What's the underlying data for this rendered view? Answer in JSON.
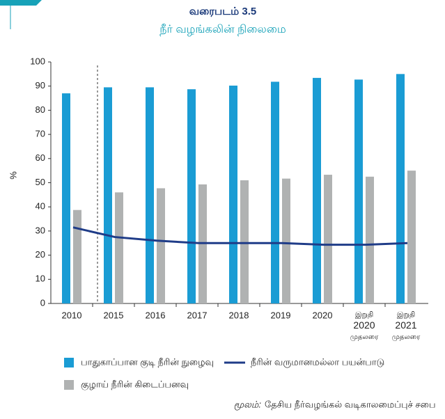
{
  "chart_data": {
    "type": "bar-line",
    "title": "வரைபடம் 3.5",
    "subtitle": "நீர் வழங்கலின் நிலைமை",
    "y_label": "%",
    "categories": [
      "2010",
      "2015",
      "2016",
      "2017",
      "2018",
      "2019",
      "2020",
      "இறுதி\n2020\nமுதலரை",
      "இறுதி\n2021\nமுதலரை"
    ],
    "series": [
      {
        "name": "பாதுகாப்பான குடி நீரின் நுழைவு",
        "type": "bar",
        "color": "#1a9cd4",
        "values": [
          87,
          89.5,
          89.5,
          88.7,
          90.2,
          91.8,
          93.4,
          92.7,
          95
        ]
      },
      {
        "name": "குழாய் நீரின் கிடைப்பனவு",
        "type": "bar",
        "color": "#b0b2b2",
        "values": [
          38.7,
          46,
          47.7,
          49.3,
          51,
          51.7,
          53.3,
          52.5,
          55
        ]
      },
      {
        "name": "நீரின் வருமானமல்லா பயன்பாடு",
        "type": "line",
        "color": "#1f3c88",
        "values": [
          31.5,
          27.5,
          26,
          25,
          25,
          25,
          24.3,
          24.3,
          25
        ]
      }
    ],
    "ylim": [
      0,
      100
    ],
    "yticks": [
      0,
      10,
      20,
      30,
      40,
      50,
      60,
      70,
      80,
      90,
      100
    ],
    "source_label": "மூலம்:",
    "source": "தேசிய நீர்வழங்கல் வடிகாலமைப்புச் சபை"
  }
}
